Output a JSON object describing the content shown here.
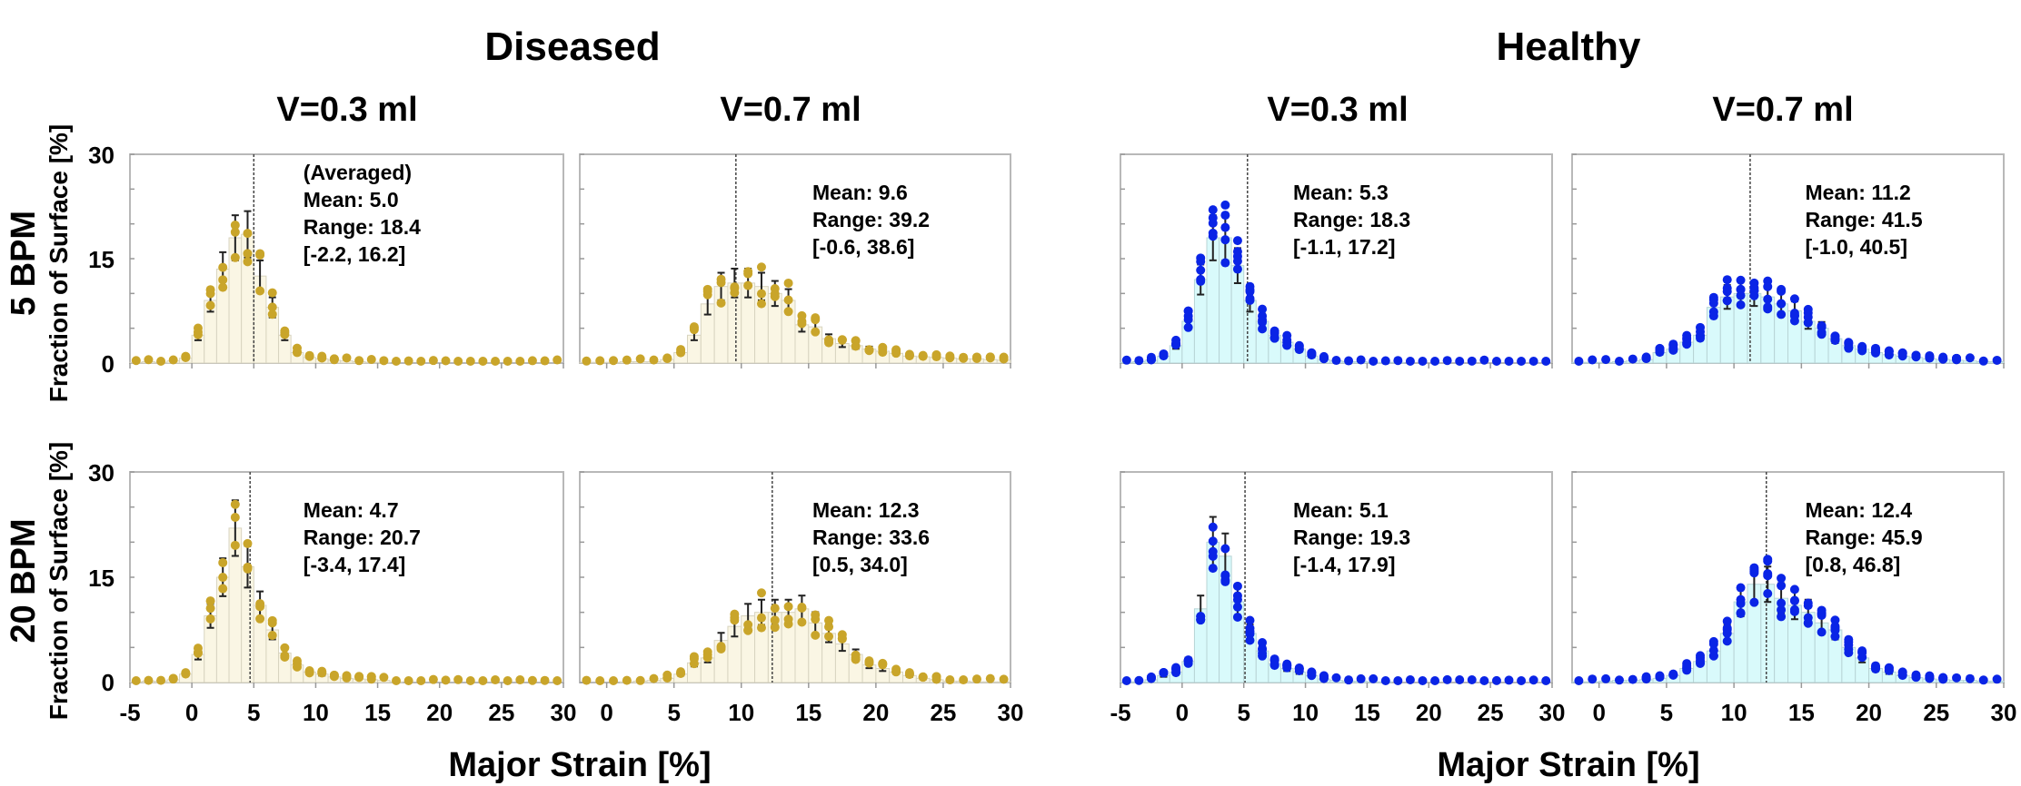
{
  "chart_data": {
    "type": "bar",
    "figure_description": "Histograms of major strain distribution with individual-sample dots and error bars; 2x4 grid",
    "groups": [
      {
        "title": "Diseased",
        "color_bar": "#faf6e4",
        "color_bar_edge": "#d8d4c0",
        "color_dot": "#c9a52a"
      },
      {
        "title": "Healthy",
        "color_bar": "#d9fafb",
        "color_bar_edge": "#b8d4d6",
        "color_dot": "#0a24e6"
      }
    ],
    "columns": [
      "V=0.3 ml",
      "V=0.7 ml",
      "V=0.3 ml",
      "V=0.7 ml"
    ],
    "rows": [
      "5 BPM",
      "20 BPM"
    ],
    "ylabel": "Fraction of Surface [%]",
    "xlabel": "Major Strain [%]",
    "ylim": [
      0,
      30
    ],
    "yticks": [
      "0",
      "15",
      "30"
    ],
    "xlim_wide": [
      -5,
      30
    ],
    "xticks_wide": [
      "-5",
      "0",
      "5",
      "10",
      "15",
      "20",
      "25",
      "30"
    ],
    "xlim_narrow": [
      -2,
      30
    ],
    "xticks_narrow": [
      "0",
      "5",
      "10",
      "15",
      "20",
      "25",
      "30"
    ],
    "bin_width": 1,
    "bin_start": -5,
    "panels": [
      {
        "id": "diseased-5bpm-0.3",
        "group": 0,
        "row": 0,
        "col": 0,
        "xrange": "wide",
        "annotation": [
          "(Averaged)",
          "Mean: 5.0",
          "Range: 18.4",
          "[-2.2, 16.2]"
        ],
        "mean": 5.0,
        "values": [
          0.1,
          0.2,
          0.1,
          0.3,
          0.7,
          4.0,
          9.0,
          13.5,
          18.0,
          18.5,
          12.5,
          8.0,
          4.0,
          1.5,
          0.8,
          0.6,
          0.4,
          0.3,
          0.2,
          0.1,
          0.1,
          0,
          0,
          0,
          0,
          0,
          0,
          0,
          0,
          0,
          0,
          0,
          0,
          0,
          0
        ]
      },
      {
        "id": "diseased-5bpm-0.7",
        "group": 0,
        "row": 0,
        "col": 1,
        "xrange": "narrow",
        "annotation": [
          "Mean: 9.6",
          "Range: 39.2",
          "[-0.6, 38.6]"
        ],
        "mean": 9.6,
        "values": [
          0.1,
          0.1,
          0.1,
          0.2,
          0.2,
          0.2,
          0.5,
          1.5,
          4.0,
          8.5,
          11.0,
          11.5,
          11.5,
          11.0,
          10.0,
          9.0,
          5.5,
          5.2,
          3.5,
          2.8,
          2.5,
          2.0,
          1.7,
          1.4,
          1.0,
          0.9,
          0.8,
          0.7,
          0.6,
          0.6,
          0.5,
          0.4
        ]
      },
      {
        "id": "healthy-5bpm-0.3",
        "group": 1,
        "row": 0,
        "col": 2,
        "xrange": "wide",
        "annotation": [
          "Mean: 5.3",
          "Range: 18.3",
          "[-1.1, 17.2]"
        ],
        "mean": 5.3,
        "values": [
          0.1,
          0.2,
          0.4,
          1.0,
          2.5,
          6.0,
          12.0,
          18.0,
          18.0,
          14.0,
          9.0,
          6.0,
          4.0,
          3.0,
          2.0,
          1.0,
          0.5,
          0.3,
          0.2,
          0.2,
          0.1,
          0.1,
          0.1,
          0,
          0,
          0,
          0,
          0,
          0,
          0,
          0,
          0,
          0,
          0,
          0
        ]
      },
      {
        "id": "healthy-5bpm-0.7",
        "group": 1,
        "row": 0,
        "col": 3,
        "xrange": "narrow",
        "annotation": [
          "Mean: 11.2",
          "Range: 41.5",
          "[-1.0, 40.5]"
        ],
        "mean": 11.2,
        "values": [
          0.1,
          0.1,
          0.1,
          0.2,
          0.3,
          0.5,
          1.5,
          2.0,
          3.0,
          4.0,
          8.0,
          9.5,
          10.0,
          10.0,
          9.5,
          8.5,
          7.5,
          6.0,
          5.0,
          3.5,
          2.5,
          2.0,
          1.5,
          1.2,
          1.0,
          0.8,
          0.6,
          0.5,
          0.4,
          0.3,
          0.2,
          0.2
        ]
      },
      {
        "id": "diseased-20bpm-0.3",
        "group": 0,
        "row": 1,
        "col": 0,
        "xrange": "wide",
        "annotation": [
          "Mean: 4.7",
          "Range: 20.7",
          "[-3.4, 17.4]"
        ],
        "mean": 4.7,
        "values": [
          0.1,
          0.2,
          0.2,
          0.4,
          1.2,
          4.0,
          9.5,
          15.0,
          22.0,
          16.5,
          11.0,
          7.5,
          4.2,
          2.5,
          1.5,
          1.2,
          0.8,
          0.6,
          0.5,
          0.4,
          0.3,
          0.1,
          0,
          0,
          0,
          0,
          0,
          0,
          0,
          0,
          0,
          0,
          0,
          0,
          0
        ]
      },
      {
        "id": "diseased-20bpm-0.7",
        "group": 0,
        "row": 1,
        "col": 1,
        "xrange": "narrow",
        "annotation": [
          "Mean: 12.3",
          "Range: 33.6",
          "[0.5, 34.0]"
        ],
        "mean": 12.3,
        "values": [
          0,
          0,
          0,
          0.1,
          0.2,
          0.3,
          0.6,
          1.2,
          2.8,
          3.5,
          6.0,
          8.0,
          9.5,
          10.0,
          10.0,
          10.0,
          10.5,
          8.5,
          7.0,
          5.5,
          4.0,
          2.5,
          2.0,
          1.5,
          1.0,
          0.6,
          0.4,
          0.2,
          0.2,
          0.1,
          0.1,
          0.1
        ]
      },
      {
        "id": "healthy-20bpm-0.3",
        "group": 1,
        "row": 1,
        "col": 2,
        "xrange": "wide",
        "annotation": [
          "Mean: 5.1",
          "Range: 19.3",
          "[-1.4, 17.9]"
        ],
        "mean": 5.1,
        "values": [
          0.1,
          0.1,
          0.4,
          1.0,
          1.5,
          3.0,
          10.5,
          20.0,
          18.0,
          11.5,
          7.0,
          4.5,
          2.7,
          2.0,
          1.5,
          1.0,
          0.5,
          0.3,
          0.2,
          0.2,
          0.1,
          0.1,
          0,
          0,
          0,
          0,
          0,
          0,
          0,
          0,
          0,
          0,
          0,
          0,
          0
        ]
      },
      {
        "id": "healthy-20bpm-0.7",
        "group": 1,
        "row": 1,
        "col": 3,
        "xrange": "narrow",
        "annotation": [
          "Mean: 12.4",
          "Range: 45.9",
          "[0.8, 46.8]"
        ],
        "mean": 12.4,
        "values": [
          0.1,
          0.1,
          0.2,
          0.3,
          0.3,
          0.4,
          0.6,
          1.0,
          2.0,
          3.0,
          4.5,
          7.0,
          11.5,
          14.0,
          14.0,
          12.0,
          11.0,
          10.0,
          8.5,
          7.5,
          5.0,
          3.5,
          2.0,
          1.5,
          1.0,
          0.7,
          0.5,
          0.4,
          0.3,
          0.3,
          0.2,
          0.2
        ]
      }
    ]
  }
}
